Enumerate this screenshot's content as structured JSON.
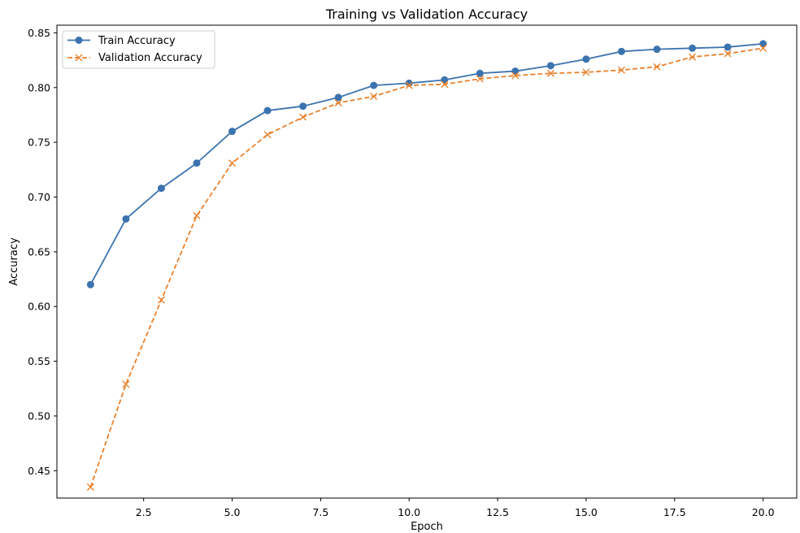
{
  "chart_data": {
    "type": "line",
    "title": "Training vs Validation Accuracy",
    "xlabel": "Epoch",
    "ylabel": "Accuracy",
    "xlim": [
      0.05,
      20.95
    ],
    "ylim": [
      0.425,
      0.857
    ],
    "xticks": [
      2.5,
      5.0,
      7.5,
      10.0,
      12.5,
      15.0,
      17.5,
      20.0
    ],
    "xtick_labels": [
      "2.5",
      "5.0",
      "7.5",
      "10.0",
      "12.5",
      "15.0",
      "17.5",
      "20.0"
    ],
    "yticks": [
      0.45,
      0.5,
      0.55,
      0.6,
      0.65,
      0.7,
      0.75,
      0.8,
      0.85
    ],
    "ytick_labels": [
      "0.45",
      "0.50",
      "0.55",
      "0.60",
      "0.65",
      "0.70",
      "0.75",
      "0.80",
      "0.85"
    ],
    "grid": false,
    "legend_position": "top-left",
    "x": [
      1,
      2,
      3,
      4,
      5,
      6,
      7,
      8,
      9,
      10,
      11,
      12,
      13,
      14,
      15,
      16,
      17,
      18,
      19,
      20
    ],
    "series": [
      {
        "name": "Train Accuracy",
        "color": "#3b73af",
        "linestyle": "solid",
        "marker": "circle",
        "values": [
          0.62,
          0.68,
          0.708,
          0.731,
          0.76,
          0.779,
          0.783,
          0.791,
          0.802,
          0.804,
          0.807,
          0.813,
          0.815,
          0.82,
          0.826,
          0.833,
          0.835,
          0.836,
          0.837,
          0.84
        ]
      },
      {
        "name": "Validation Accuracy",
        "color": "#e8822d",
        "linestyle": "dashed",
        "marker": "x",
        "values": [
          0.435,
          0.529,
          0.606,
          0.683,
          0.731,
          0.757,
          0.773,
          0.786,
          0.792,
          0.802,
          0.803,
          0.808,
          0.811,
          0.813,
          0.814,
          0.816,
          0.819,
          0.828,
          0.831,
          0.836
        ]
      }
    ]
  }
}
